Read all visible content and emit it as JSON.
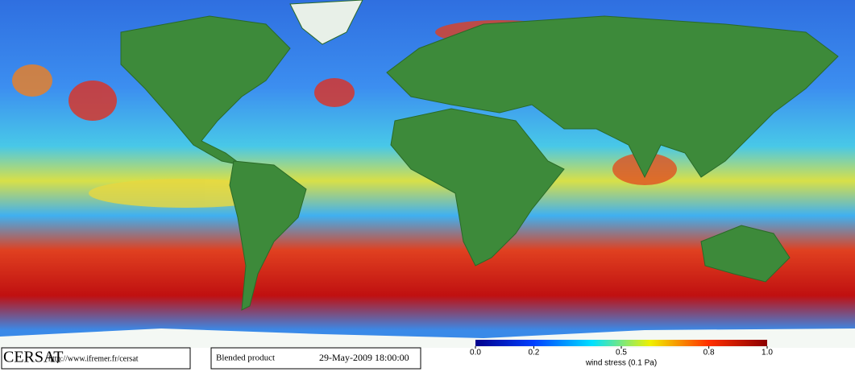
{
  "footer": {
    "logo": "CERSAT",
    "url": "http://www.ifremer.fr/cersat",
    "product": "Blended product",
    "datetime": "29-May-2009 18:00:00"
  },
  "colorbar": {
    "label": "wind stress (0.1 Pa)",
    "lim": [
      0,
      1
    ],
    "ticks": [
      {
        "value": 0,
        "label": "0.0"
      },
      0.2,
      0.5,
      0.8,
      {
        "value": 1,
        "label": "1.0"
      }
    ]
  }
}
